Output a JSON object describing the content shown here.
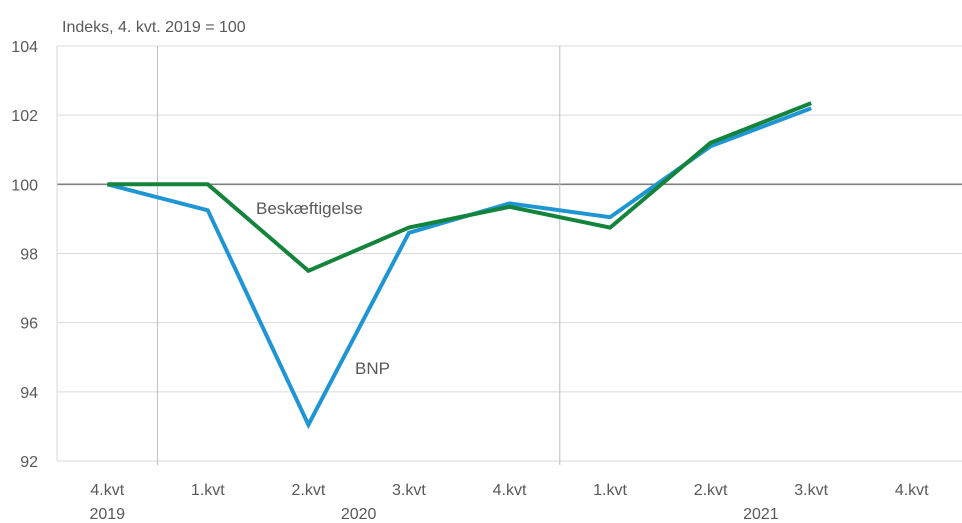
{
  "chart_data": {
    "type": "line",
    "unit_label": "Indeks, 4. kvt. 2019 = 100",
    "x": [
      "4.kvt",
      "1.kvt",
      "2.kvt",
      "3.kvt",
      "4.kvt",
      "1.kvt",
      "2.kvt",
      "3.kvt",
      "4.kvt"
    ],
    "year_labels": [
      {
        "label": "2019",
        "index": 0
      },
      {
        "label": "2020",
        "index": 2.5
      },
      {
        "label": "2021",
        "index": 6.5
      }
    ],
    "year_separators_after_index": [
      0,
      4
    ],
    "ylim": [
      92,
      104
    ],
    "yticks": [
      92,
      94,
      96,
      98,
      100,
      102,
      104
    ],
    "reference_line": 100,
    "grid": true,
    "series": [
      {
        "name": "BNP",
        "color": "#1f96d3",
        "values": [
          100.0,
          99.25,
          93.05,
          98.6,
          99.45,
          99.05,
          101.1,
          102.2,
          null
        ]
      },
      {
        "name": "Beskæftigelse",
        "color": "#14843c",
        "values": [
          100.0,
          100.0,
          97.5,
          98.75,
          99.35,
          98.75,
          101.2,
          102.35,
          null
        ]
      }
    ]
  }
}
